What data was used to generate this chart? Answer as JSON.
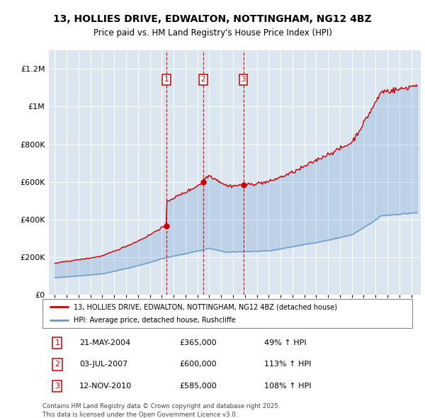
{
  "title": "13, HOLLIES DRIVE, EDWALTON, NOTTINGHAM, NG12 4BZ",
  "subtitle": "Price paid vs. HM Land Registry's House Price Index (HPI)",
  "bg_color": "#dce6f1",
  "red_line_label": "13, HOLLIES DRIVE, EDWALTON, NOTTINGHAM, NG12 4BZ (detached house)",
  "blue_line_label": "HPI: Average price, detached house, Rushcliffe",
  "transactions": [
    {
      "num": 1,
      "date": "21-MAY-2004",
      "year_decimal": 2004.38,
      "price": 365000,
      "hpi_str": "49% ↑ HPI"
    },
    {
      "num": 2,
      "date": "03-JUL-2007",
      "year_decimal": 2007.5,
      "price": 600000,
      "hpi_str": "113% ↑ HPI"
    },
    {
      "num": 3,
      "date": "12-NOV-2010",
      "year_decimal": 2010.87,
      "price": 585000,
      "hpi_str": "108% ↑ HPI"
    }
  ],
  "footer": "Contains HM Land Registry data © Crown copyright and database right 2025.\nThis data is licensed under the Open Government Licence v3.0.",
  "red_color": "#cc0000",
  "blue_color": "#6699cc",
  "fill_color": "#c5d8ed",
  "ylim_max": 1300000,
  "xlim_min": 1994.5,
  "xlim_max": 2025.8
}
